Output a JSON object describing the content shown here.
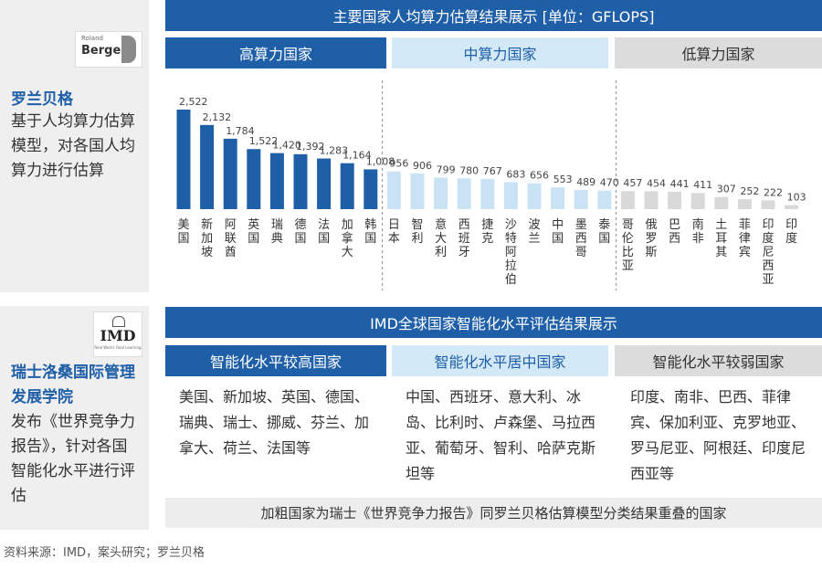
{
  "top": {
    "title": "主要国家人均算力估算结果展示 [单位：GFLOPS]",
    "side_title": "罗兰贝格",
    "side_text": "基于人均算力估算模型，对各国人均算力进行估算",
    "logo_small": "Roland",
    "logo_text": "Berger",
    "groups": [
      "高算力国家",
      "中算力国家",
      "低算力国家"
    ]
  },
  "chart_data": {
    "type": "bar",
    "title": "主要国家人均算力估算结果展示 [单位：GFLOPS]",
    "categories": [
      "美国",
      "新加坡",
      "阿联酋",
      "英国",
      "瑞典",
      "德国",
      "法国",
      "加拿大",
      "韩国",
      "日本",
      "智利",
      "意大利",
      "西班牙",
      "捷克",
      "沙特阿拉伯",
      "波兰",
      "中国",
      "墨西哥",
      "泰国",
      "哥伦比亚",
      "俄罗斯",
      "巴西",
      "南非",
      "土耳其",
      "菲律宾",
      "印度尼西亚",
      "印度"
    ],
    "values": [
      2522,
      2132,
      1784,
      1522,
      1420,
      1392,
      1283,
      1164,
      1008,
      956,
      906,
      799,
      780,
      767,
      683,
      656,
      553,
      489,
      470,
      457,
      454,
      441,
      411,
      307,
      252,
      222,
      103
    ],
    "value_labels": [
      "2,522",
      "2,132",
      "1,784",
      "1,522",
      "1,420",
      "1,392",
      "1,283",
      "1,164",
      "1,008",
      "956",
      "906",
      "799",
      "780",
      "767",
      "683",
      "656",
      "553",
      "489",
      "470",
      "457",
      "454",
      "441",
      "411",
      "307",
      "252",
      "222",
      "103"
    ],
    "groups": [
      {
        "name": "高算力国家",
        "count": 9,
        "color": "#1f5fa8"
      },
      {
        "name": "中算力国家",
        "count": 10,
        "color": "#c9e3f5"
      },
      {
        "name": "低算力国家",
        "count": 8,
        "color": "#d9d9d9"
      }
    ],
    "ylim": [
      0,
      2700
    ],
    "grid": false,
    "legend": "none"
  },
  "bottom": {
    "title": "IMD全球国家智能化水平评估结果展示",
    "side_title": "瑞士洛桑国际管理发展学院",
    "side_text": "发布《世界竞争力报告》，针对各国智能化水平进行评估",
    "logo_text": "IMD",
    "logo_sub": "Real World. Real Learning",
    "groups": [
      {
        "header": "智能化水平较高国家",
        "text": "美国、新加坡、英国、德国、瑞典、瑞士、挪威、芬兰、加拿大、荷兰、法国等"
      },
      {
        "header": "智能化水平居中国家",
        "text": "中国、西班牙、意大利、冰岛、比利时、卢森堡、马拉西亚、葡萄牙、智利、哈萨克斯坦等"
      },
      {
        "header": "智能化水平较弱国家",
        "text": "印度、南非、巴西、菲律宾、保加利亚、克罗地亚、罗马尼亚、阿根廷、印度尼西亚等"
      }
    ],
    "note": "加粗国家为瑞士《世界竞争力报告》同罗兰贝格估算模型分类结果重叠的国家"
  },
  "footer": "资料来源：IMD，案头研究；罗兰贝格"
}
